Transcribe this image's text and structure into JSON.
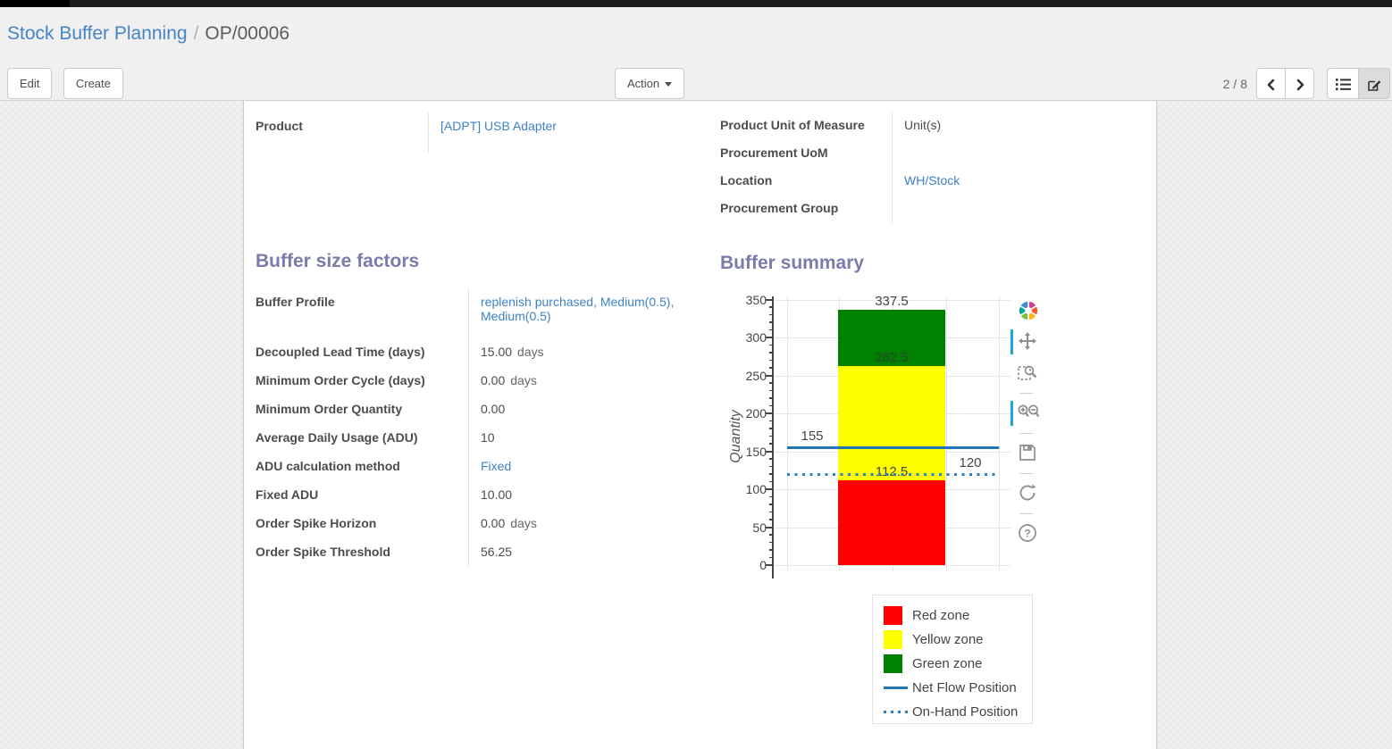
{
  "breadcrumb": {
    "parent": "Stock Buffer Planning",
    "separator": "/",
    "current": "OP/00006"
  },
  "control_panel": {
    "edit_label": "Edit",
    "create_label": "Create",
    "action_label": "Action",
    "pager_value": "2 / 8"
  },
  "form": {
    "product": {
      "label": "Product",
      "value": "[ADPT] USB Adapter"
    },
    "right_fields": [
      {
        "label": "Product Unit of Measure",
        "value": "Unit(s)"
      },
      {
        "label": "Procurement UoM",
        "value": ""
      },
      {
        "label": "Location",
        "value": "WH/Stock"
      },
      {
        "label": "Procurement Group",
        "value": ""
      }
    ],
    "buffer_size_factors": {
      "title": "Buffer size factors",
      "fields": [
        {
          "label": "Buffer Profile",
          "value": "replenish purchased, Medium(0.5), Medium(0.5)"
        },
        {
          "label": "Decoupled Lead Time (days)",
          "value": "15.00",
          "unit": "days"
        },
        {
          "label": "Minimum Order Cycle (days)",
          "value": "0.00",
          "unit": "days"
        },
        {
          "label": "Minimum Order Quantity",
          "value": "0.00"
        },
        {
          "label": "Average Daily Usage (ADU)",
          "value": "10"
        },
        {
          "label": "ADU calculation method",
          "value": "Fixed"
        },
        {
          "label": "Fixed ADU",
          "value": "10.00"
        },
        {
          "label": "Order Spike Horizon",
          "value": "0.00",
          "unit": "days"
        },
        {
          "label": "Order Spike Threshold",
          "value": "56.25"
        }
      ]
    },
    "buffer_summary": {
      "title": "Buffer summary"
    }
  },
  "chart_data": {
    "type": "bar",
    "title": "",
    "xlabel": "",
    "ylabel": "Quantity",
    "ylim": [
      0,
      350
    ],
    "yticks": [
      0,
      50,
      100,
      150,
      200,
      250,
      300,
      350
    ],
    "minor_tick_step": 10,
    "grid": true,
    "zones": [
      {
        "name": "Red zone",
        "color": "#ff0000",
        "from": 0,
        "to": 112.5
      },
      {
        "name": "Yellow zone",
        "color": "#ffff00",
        "from": 112.5,
        "to": 262.5
      },
      {
        "name": "Green zone",
        "color": "#008000",
        "from": 262.5,
        "to": 337.5
      }
    ],
    "zone_labels": [
      {
        "text": "337.5",
        "value": 337.5,
        "position": "above"
      },
      {
        "text": "262.5",
        "value": 262.5,
        "position": "inside"
      },
      {
        "text": "112.5",
        "value": 112.5,
        "position": "boundary"
      }
    ],
    "lines": [
      {
        "name": "Net Flow Position",
        "value": 155,
        "label": "155",
        "style": "solid",
        "color": "#1f77b4",
        "label_side": "left"
      },
      {
        "name": "On-Hand Position",
        "value": 120,
        "label": "120",
        "style": "dotted",
        "color": "#2f7fc1",
        "label_side": "right"
      }
    ],
    "legend": [
      {
        "label": "Red zone",
        "swatch": "box",
        "color": "#ff0000"
      },
      {
        "label": "Yellow zone",
        "swatch": "box",
        "color": "#ffff00"
      },
      {
        "label": "Green zone",
        "swatch": "box",
        "color": "#008000"
      },
      {
        "label": "Net Flow Position",
        "swatch": "line",
        "color": "#1f77b4"
      },
      {
        "label": "On-Hand Position",
        "swatch": "dotted-line",
        "color": "#2f7fc1"
      }
    ],
    "legend_position": "bottom-right",
    "modebar_icons": [
      "plotly-logo",
      "pan",
      "box-zoom",
      "zoom-in-out",
      "save",
      "reset-axes",
      "help"
    ]
  }
}
